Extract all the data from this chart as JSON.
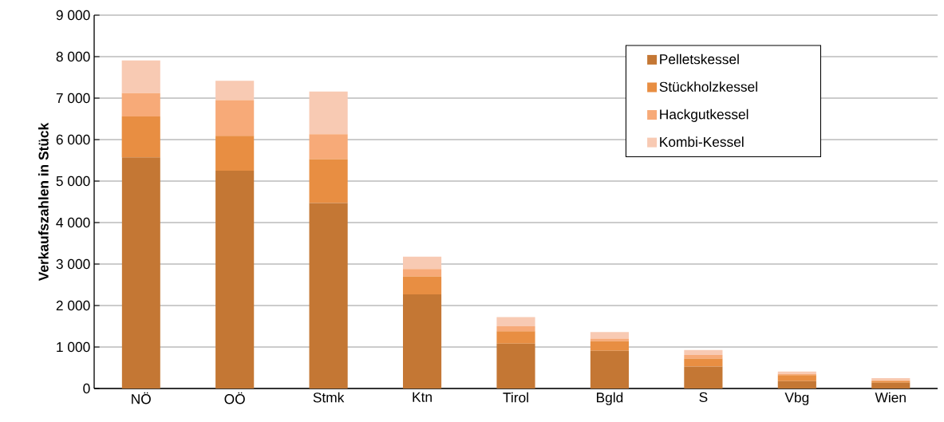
{
  "chart_data": {
    "type": "bar",
    "stacked": true,
    "ylabel": "Verkaufszahlen in Stück",
    "categories": [
      "NÖ",
      "OÖ",
      "Stmk",
      "Ktn",
      "Tirol",
      "Bgld",
      "S",
      "Vbg",
      "Wien"
    ],
    "series": [
      {
        "name": "Pelletskessel",
        "color": "#c47734",
        "values": [
          5570,
          5250,
          4470,
          2270,
          1080,
          910,
          530,
          180,
          140
        ]
      },
      {
        "name": "Stückholzkessel",
        "color": "#e88e42",
        "values": [
          990,
          840,
          1060,
          430,
          300,
          230,
          190,
          140,
          40
        ]
      },
      {
        "name": "Hackgutkessel",
        "color": "#f7aa78",
        "values": [
          560,
          860,
          600,
          180,
          120,
          60,
          90,
          30,
          20
        ]
      },
      {
        "name": "Kombi-Kessel",
        "color": "#f8cab3",
        "values": [
          790,
          470,
          1030,
          300,
          220,
          160,
          120,
          60,
          50
        ]
      }
    ],
    "ylim": [
      0,
      9000
    ],
    "yticks": [
      0,
      {
        "value": 1000,
        "label": "1 000"
      },
      {
        "value": 2000,
        "label": "2 000"
      },
      {
        "value": 3000,
        "label": "3 000"
      },
      {
        "value": 4000,
        "label": "4 000"
      },
      {
        "value": 5000,
        "label": "5 000"
      },
      {
        "value": 6000,
        "label": "6 000"
      },
      {
        "value": 7000,
        "label": "7 000"
      },
      {
        "value": 8000,
        "label": "8 000"
      },
      {
        "value": 9000,
        "label": "9 000"
      }
    ],
    "grid": "y",
    "legend": "top right"
  }
}
